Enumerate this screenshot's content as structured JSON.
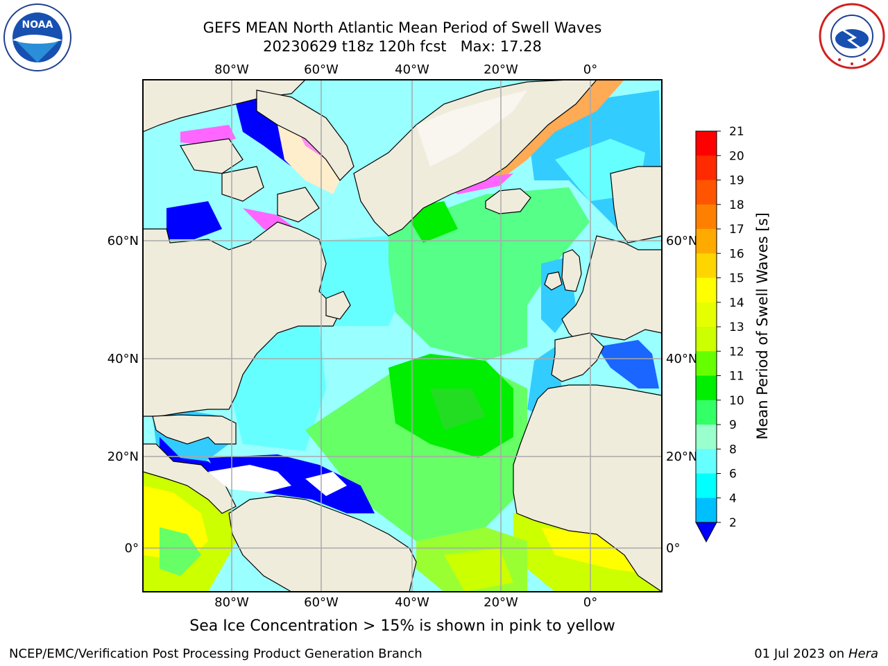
{
  "header": {
    "title_line1": "GEFS MEAN North Atlantic Mean Period of Swell Waves",
    "title_line2": "20230629 t18z 120h fcst   Max: 17.28"
  },
  "logos": {
    "left": {
      "name": "noaa-logo",
      "text": "NOAA",
      "ring_text": "NATIONAL OCEANIC AND ATMOSPHERIC ADMINISTRATION · U.S. DEPARTMENT OF COMMERCE"
    },
    "right": {
      "name": "nws-logo",
      "ring_text": "NATIONAL WEATHER SERVICE"
    }
  },
  "map": {
    "lon_labels": [
      "80°W",
      "60°W",
      "40°W",
      "20°W",
      "0°"
    ],
    "lat_labels": [
      "60°N",
      "40°N",
      "20°N",
      "0°"
    ],
    "ocean_colors": {
      "land": "#efecdc",
      "deep": "#0000ff",
      "cyan": "#33ccff",
      "aqua": "#99ffff",
      "lightgreen": "#66ff66",
      "green": "#00ee00",
      "yellowgreen": "#ccff00",
      "yellow": "#ffff00",
      "ice_pink": "#ff66ff",
      "ice_orange": "#ffaa55"
    }
  },
  "colorbar": {
    "label": "Mean Period of Swell Waves [s]",
    "ticks": [
      "21",
      "20",
      "19",
      "18",
      "17",
      "16",
      "15",
      "14",
      "13",
      "12",
      "11",
      "10",
      "9",
      "8",
      "6",
      "4",
      "2"
    ],
    "colors": [
      "#ff0000",
      "#ff2a00",
      "#ff5500",
      "#ff8000",
      "#ffaa00",
      "#ffd500",
      "#ffff00",
      "#e6ff00",
      "#ccff00",
      "#66ff00",
      "#00ee00",
      "#33ff66",
      "#99ffcc",
      "#66ffff",
      "#00ffff",
      "#00bfff",
      "#0066ff",
      "#0000ff"
    ]
  },
  "notes": {
    "ice": "Sea Ice Concentration > 15% is shown in pink to yellow"
  },
  "footer": {
    "credit": "NCEP/EMC/Verification Post Processing Product Generation Branch",
    "date": "01 Jul 2023 on ",
    "machine": "Hera"
  }
}
